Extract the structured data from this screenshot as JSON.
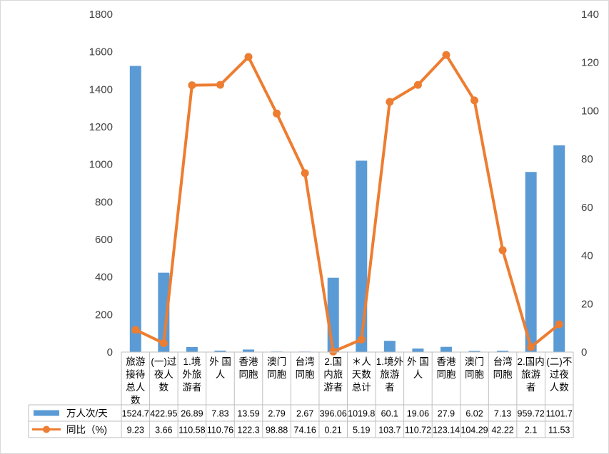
{
  "chart_data": {
    "type": "bar+line",
    "categories": [
      [
        "旅游",
        "接待",
        "总人",
        "数"
      ],
      [
        "(一)过",
        "夜人",
        "数"
      ],
      [
        "1.境",
        "外旅",
        "游者"
      ],
      [
        "外 国",
        "人"
      ],
      [
        "香港",
        "同胞"
      ],
      [
        "澳门",
        "同胞"
      ],
      [
        "台湾",
        "同胞"
      ],
      [
        "2.国",
        "内旅",
        "游者"
      ],
      [
        "＊人",
        "天数",
        "总计"
      ],
      [
        "1.境外",
        "旅游",
        "者"
      ],
      [
        "外 国",
        "人"
      ],
      [
        "香港",
        "同胞"
      ],
      [
        "澳门",
        "同胞"
      ],
      [
        "台湾",
        "同胞"
      ],
      [
        "2.国内",
        "旅游",
        "者"
      ],
      [
        "(二)不",
        "过夜",
        "人数"
      ]
    ],
    "series": [
      {
        "name": "万人次/天",
        "type": "bar",
        "axis": "left",
        "color": "#5B9BD5",
        "values": [
          1524.7,
          422.95,
          26.89,
          7.83,
          13.59,
          2.79,
          2.67,
          396.06,
          1019.8,
          60.1,
          19.06,
          27.9,
          6.02,
          7.13,
          959.72,
          1101.7
        ],
        "labels": [
          "1524.7",
          "422.95",
          "26.89",
          "7.83",
          "13.59",
          "2.79",
          "2.67",
          "396.06",
          "1019.8",
          "60.1",
          "19.06",
          "27.9",
          "6.02",
          "7.13",
          "959.72",
          "1101.7"
        ]
      },
      {
        "name": "同比（%)",
        "type": "line",
        "axis": "right",
        "color": "#ED7D31",
        "values": [
          9.23,
          3.66,
          110.58,
          110.76,
          122.3,
          98.88,
          74.16,
          0.21,
          5.19,
          103.7,
          110.72,
          123.14,
          104.29,
          42.22,
          2.1,
          11.53
        ],
        "labels": [
          "9.23",
          "3.66",
          "110.58",
          "110.76",
          "122.3",
          "98.88",
          "74.16",
          "0.21",
          "5.19",
          "103.7",
          "110.72",
          "123.14",
          "104.29",
          "42.22",
          "2.1",
          "11.53"
        ]
      }
    ],
    "y_left": {
      "min": 0,
      "max": 1800,
      "ticks": [
        "0",
        "200",
        "400",
        "600",
        "800",
        "1000",
        "1200",
        "1400",
        "1600",
        "1800"
      ]
    },
    "y_right": {
      "min": 0,
      "max": 140,
      "ticks": [
        "0",
        "20",
        "40",
        "60",
        "80",
        "100",
        "120",
        "140"
      ]
    },
    "grid": false,
    "legend": "bottom data table"
  }
}
